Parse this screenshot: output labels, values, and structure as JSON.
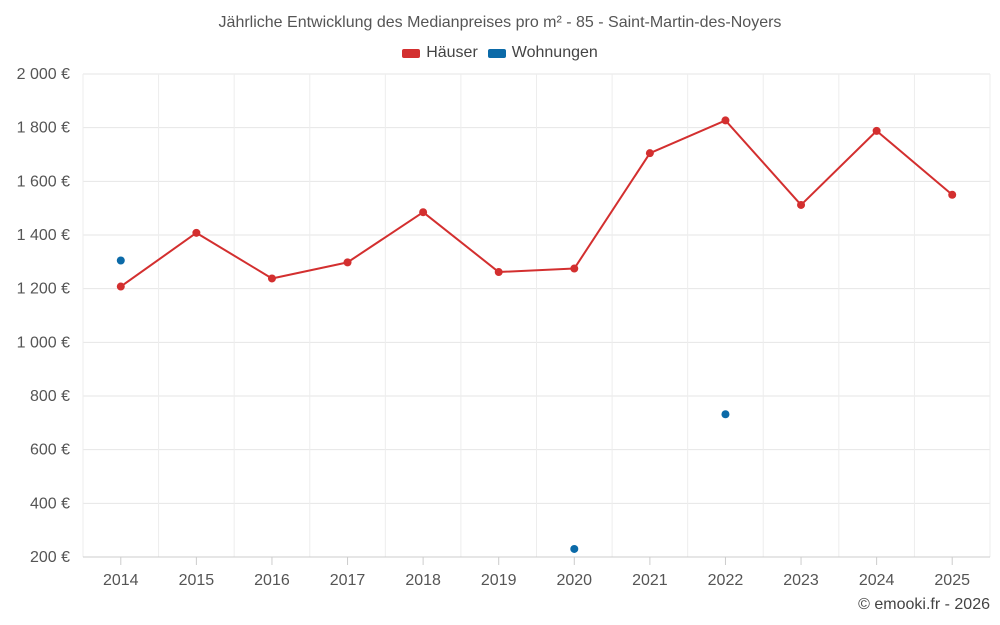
{
  "chart_data": {
    "type": "line",
    "title": "Jährliche Entwicklung des Medianpreises pro m² - 85 - Saint-Martin-des-Noyers",
    "categories": [
      "2014",
      "2015",
      "2016",
      "2017",
      "2018",
      "2019",
      "2020",
      "2021",
      "2022",
      "2023",
      "2024",
      "2025"
    ],
    "series": [
      {
        "name": "Häuser",
        "color": "#d32f2f",
        "values": [
          1208,
          1408,
          1238,
          1298,
          1485,
          1262,
          1275,
          1705,
          1827,
          1512,
          1788,
          1550
        ]
      },
      {
        "name": "Wohnungen",
        "color": "#0b6aa8",
        "values": [
          1305,
          null,
          null,
          null,
          null,
          null,
          230,
          null,
          732,
          null,
          null,
          null
        ]
      }
    ],
    "ylim": [
      200,
      2000
    ],
    "yticks": [
      200,
      400,
      600,
      800,
      1000,
      1200,
      1400,
      1600,
      1800,
      2000
    ],
    "ytick_labels": [
      "200 €",
      "400 €",
      "600 €",
      "800 €",
      "1 000 €",
      "1 200 €",
      "1 400 €",
      "1 600 €",
      "1 800 €",
      "2 000 €"
    ],
    "xlabel": "",
    "ylabel": "",
    "grid": true,
    "legend_position": "top-center"
  },
  "credit": "© emooki.fr - 2026"
}
